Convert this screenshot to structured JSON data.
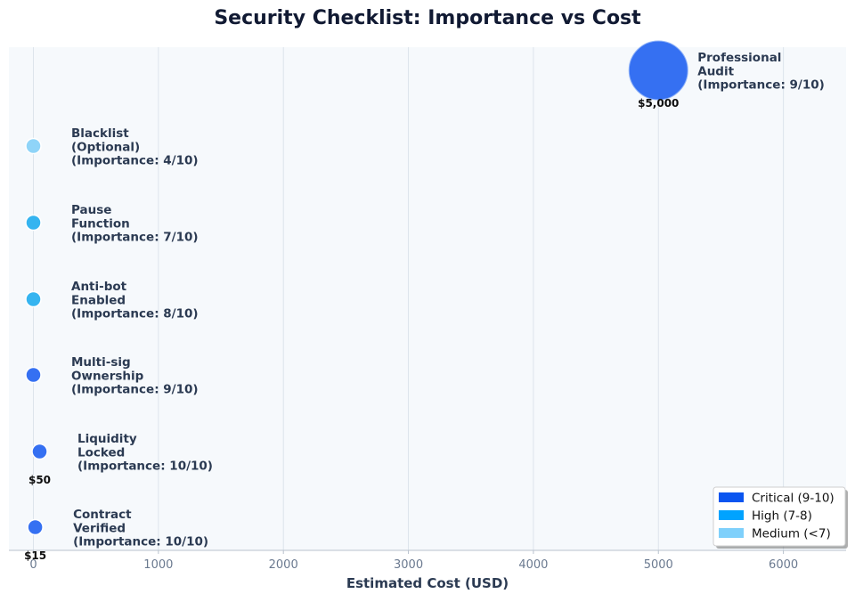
{
  "chart_data": {
    "type": "scatter",
    "title": "Security Checklist: Importance vs Cost",
    "xlabel": "Estimated Cost (USD)",
    "ylabel": "",
    "xlim": [
      -200,
      6500
    ],
    "xticks": [
      0,
      1000,
      2000,
      3000,
      4000,
      5000,
      6000
    ],
    "grid": true,
    "legend_position": "bottom-right",
    "points": [
      {
        "item": [
          "Contract",
          "Verified"
        ],
        "importance_text": "(Importance: 10/10)",
        "importance": 10,
        "cost": 15,
        "cost_label": "$15",
        "category": "critical"
      },
      {
        "item": [
          "Liquidity",
          "Locked"
        ],
        "importance_text": "(Importance: 10/10)",
        "importance": 10,
        "cost": 50,
        "cost_label": "$50",
        "category": "critical"
      },
      {
        "item": [
          "Multi-sig",
          "Ownership"
        ],
        "importance_text": "(Importance: 9/10)",
        "importance": 9,
        "cost": 0,
        "cost_label": "",
        "category": "critical"
      },
      {
        "item": [
          "Anti-bot",
          "Enabled"
        ],
        "importance_text": "(Importance: 8/10)",
        "importance": 8,
        "cost": 0,
        "cost_label": "",
        "category": "high"
      },
      {
        "item": [
          "Pause",
          "Function"
        ],
        "importance_text": "(Importance: 7/10)",
        "importance": 7,
        "cost": 0,
        "cost_label": "",
        "category": "high"
      },
      {
        "item": [
          "Blacklist",
          "(Optional)"
        ],
        "importance_text": "(Importance: 4/10)",
        "importance": 4,
        "cost": 0,
        "cost_label": "",
        "category": "medium"
      },
      {
        "item": [
          "Professional",
          "Audit"
        ],
        "importance_text": "(Importance: 9/10)",
        "importance": 9,
        "cost": 5000,
        "cost_label": "$5,000",
        "category": "critical"
      }
    ],
    "legend": [
      {
        "key": "critical",
        "label": "Critical (9-10)",
        "color": "#0a55f0"
      },
      {
        "key": "high",
        "label": "High (7-8)",
        "color": "#00a3ff"
      },
      {
        "key": "medium",
        "label": "Medium (<7)",
        "color": "#7fd0fb"
      }
    ],
    "marker_colors": {
      "critical": "#3570f2",
      "high": "#35b4f0",
      "medium": "#8fd4f8"
    }
  }
}
